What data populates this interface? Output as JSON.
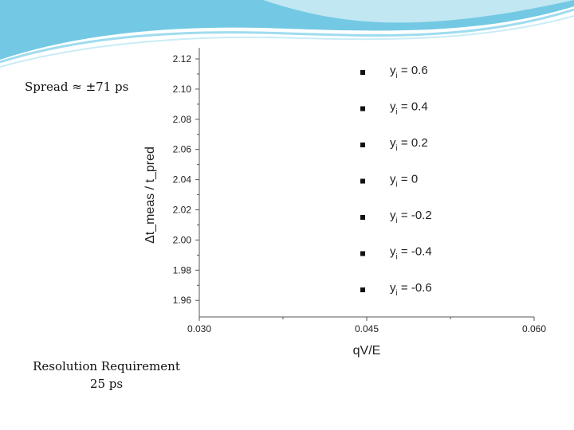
{
  "slide": {
    "spread_text": "Spread ≈ ±71 ps",
    "resolution_line1": "Resolution Requirement",
    "resolution_line2": "25 ps",
    "accent_color": "#5bc0de"
  },
  "chart_data": {
    "type": "scatter",
    "title": "",
    "xlabel": "qV/E",
    "ylabel": "Δt_meas / t_pred",
    "xlim": [
      0.03,
      0.06
    ],
    "ylim": [
      1.955,
      2.125
    ],
    "x_ticks": [
      "0.030",
      "0.045",
      "0.060"
    ],
    "y_ticks": [
      "2.12",
      "2.10",
      "2.08",
      "2.06",
      "2.04",
      "2.02",
      "2.00",
      "1.98",
      "1.96"
    ],
    "grid": false,
    "legend_position": "right",
    "series": [
      {
        "name": "yi = 0.6",
        "sub": "i",
        "base": "y",
        "val": " = 0.6"
      },
      {
        "name": "yi = 0.4",
        "sub": "i",
        "base": "y",
        "val": " = 0.4"
      },
      {
        "name": "yi = 0.2",
        "sub": "i",
        "base": "y",
        "val": " = 0.2"
      },
      {
        "name": "yi = 0",
        "sub": "i",
        "base": "y",
        "val": " = 0"
      },
      {
        "name": "yi = -0.2",
        "sub": "i",
        "base": "y",
        "val": " = -0.2"
      },
      {
        "name": "yi = -0.4",
        "sub": "i",
        "base": "y",
        "val": " = -0.4"
      },
      {
        "name": "yi = -0.6",
        "sub": "i",
        "base": "y",
        "val": " = -0.6"
      }
    ],
    "marker_color": "#111111"
  }
}
